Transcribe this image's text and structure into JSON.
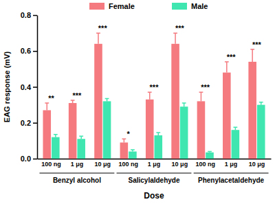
{
  "chart_data": {
    "type": "bar",
    "x_label": "Dose",
    "y_label": "EAG response (mV)",
    "categories": [
      "100 ng",
      "1 μg",
      "10 μg",
      "100 ng",
      "1 μg",
      "10 μg",
      "100 ng",
      "1 μg",
      "10 μg"
    ],
    "category_groups": [
      "Benzyl alcohol",
      "Salicylaldehyde",
      "Phenylacetaldehyde"
    ],
    "series": [
      {
        "name": "Female",
        "color": "#f47a7f",
        "values": [
          0.27,
          0.31,
          0.64,
          0.09,
          0.33,
          0.64,
          0.32,
          0.48,
          0.54
        ],
        "errors": [
          0.04,
          0.015,
          0.06,
          0.02,
          0.04,
          0.06,
          0.05,
          0.06,
          0.07
        ]
      },
      {
        "name": "Male",
        "color": "#3fe6b0",
        "values": [
          0.12,
          0.11,
          0.32,
          0.04,
          0.13,
          0.29,
          0.035,
          0.16,
          0.3
        ],
        "errors": [
          0.015,
          0.015,
          0.015,
          0.01,
          0.015,
          0.02,
          0.005,
          0.015,
          0.015
        ]
      }
    ],
    "annotations": [
      "**",
      "***",
      "***",
      "*",
      "***",
      "***",
      "***",
      "***",
      "***"
    ],
    "ylim": [
      0,
      0.8
    ],
    "yticks": [
      {
        "value": 0,
        "label": "0.0"
      },
      0.2,
      0.4,
      0.6,
      0.8
    ],
    "legend": "top"
  }
}
